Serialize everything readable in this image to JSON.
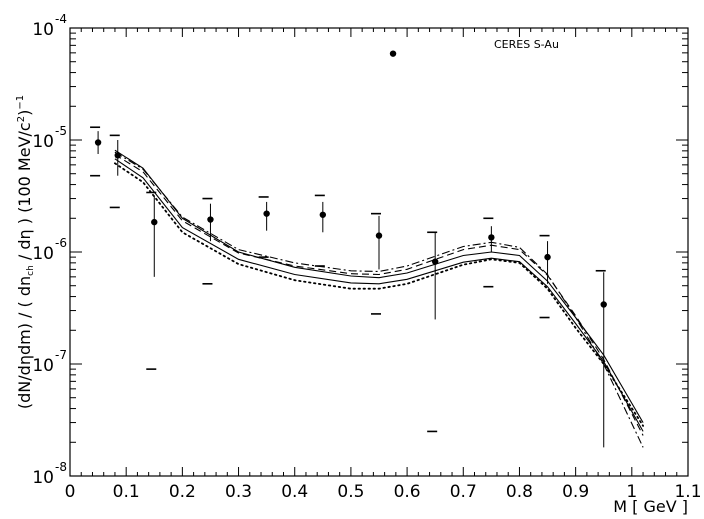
{
  "chart_data": {
    "type": "scatter",
    "title": "",
    "annotation": "CERES S-Au",
    "xlabel": "M [ GeV ]",
    "ylabel": "(dN/dηdm) / ( dn_ch / dη ) (100 MeV/c²)⁻¹",
    "ylabel_parts": {
      "prefix": "(dN/d",
      "eta1": "η",
      "mid": "dm) / ( dn",
      "sub": "ch",
      "mid2": " / d",
      "eta2": "η",
      "suffix": " ) (100 MeV/c",
      "sup2": "2",
      "close": ")",
      "supm1": "−1"
    },
    "x_scale": "linear",
    "y_scale": "log",
    "xlim": [
      0,
      1.1
    ],
    "ylim": [
      1e-08,
      0.0001
    ],
    "x_ticks": [
      "0",
      "0.1",
      "0.2",
      "0.3",
      "0.4",
      "0.5",
      "0.6",
      "0.7",
      "0.8",
      "0.9",
      "1",
      "1.1"
    ],
    "y_ticks": [
      {
        "base": "10",
        "exp": "-8"
      },
      {
        "base": "10",
        "exp": "-7"
      },
      {
        "base": "10",
        "exp": "-6"
      },
      {
        "base": "10",
        "exp": "-5"
      },
      {
        "base": "10",
        "exp": "-4"
      }
    ],
    "grid": false,
    "points": [
      {
        "x": 0.05,
        "y": 9.5e-06,
        "err_lo": 7.5e-06,
        "err_hi": 1.2e-05,
        "sys_lo": 4.8e-06,
        "sys_hi": 1.3e-05
      },
      {
        "x": 0.085,
        "y": 7.3e-06,
        "err_lo": 4.8e-06,
        "err_hi": 1e-05,
        "sys_lo": 2.5e-06,
        "sys_hi": 1.1e-05
      },
      {
        "x": 0.15,
        "y": 1.85e-06,
        "err_lo": 6e-07,
        "err_hi": 3.2e-06,
        "sys_lo": 9e-08,
        "sys_hi": 3.4e-06
      },
      {
        "x": 0.25,
        "y": 1.95e-06,
        "err_lo": 1.25e-06,
        "err_hi": 2.7e-06,
        "sys_lo": 5.2e-07,
        "sys_hi": 3e-06
      },
      {
        "x": 0.35,
        "y": 2.2e-06,
        "err_lo": 1.55e-06,
        "err_hi": 2.8e-06,
        "sys_lo": 9e-07,
        "sys_hi": 3.1e-06
      },
      {
        "x": 0.45,
        "y": 2.15e-06,
        "err_lo": 1.5e-06,
        "err_hi": 2.8e-06,
        "sys_lo": 7.5e-07,
        "sys_hi": 3.2e-06
      },
      {
        "x": 0.55,
        "y": 1.4e-06,
        "err_lo": 7e-07,
        "err_hi": 2.1e-06,
        "sys_lo": 2.8e-07,
        "sys_hi": 2.2e-06
      },
      {
        "x": 0.575,
        "y": 5.9e-05
      },
      {
        "x": 0.65,
        "y": 8.2e-07,
        "err_lo": 2.5e-07,
        "err_hi": 1.5e-06,
        "sys_lo": 2.5e-08,
        "sys_hi": 1.5e-06
      },
      {
        "x": 0.75,
        "y": 1.35e-06,
        "err_lo": 1e-06,
        "err_hi": 1.7e-06,
        "sys_lo": 4.9e-07,
        "sys_hi": 2e-06
      },
      {
        "x": 0.85,
        "y": 9e-07,
        "err_lo": 5.2e-07,
        "err_hi": 1.25e-06,
        "sys_lo": 2.6e-07,
        "sys_hi": 1.4e-06
      },
      {
        "x": 0.95,
        "y": 3.4e-07,
        "err_lo": 1.8e-08,
        "err_hi": 6.6e-07,
        "sys_lo": null,
        "sys_hi": 6.8e-07
      }
    ],
    "curves": [
      {
        "style": "solid",
        "x": [
          0.08,
          0.13,
          0.2,
          0.3,
          0.4,
          0.5,
          0.55,
          0.6,
          0.7,
          0.75,
          0.8,
          0.85,
          0.9,
          0.95,
          1.02
        ],
        "y": [
          8.1e-06,
          5.6e-06,
          2e-06,
          1e-06,
          7.3e-07,
          6.1e-07,
          5.9e-07,
          6.5e-07,
          9.3e-07,
          1e-06,
          9.3e-07,
          5.5e-07,
          2.6e-07,
          1.2e-07,
          3e-08
        ]
      },
      {
        "style": "solid",
        "x": [
          0.08,
          0.13,
          0.2,
          0.3,
          0.4,
          0.5,
          0.55,
          0.6,
          0.7,
          0.75,
          0.8,
          0.85,
          0.9,
          0.95,
          1.02
        ],
        "y": [
          6.8e-06,
          4.6e-06,
          1.65e-06,
          8.6e-07,
          6.3e-07,
          5.3e-07,
          5.2e-07,
          5.7e-07,
          8.1e-07,
          8.8e-07,
          8.2e-07,
          4.9e-07,
          2.3e-07,
          1.05e-07,
          2.5e-08
        ]
      },
      {
        "style": "dashed",
        "x": [
          0.08,
          0.13,
          0.2,
          0.3,
          0.4,
          0.5,
          0.55,
          0.6,
          0.7,
          0.75,
          0.8,
          0.85,
          0.9,
          0.95,
          1.02
        ],
        "y": [
          7.4e-06,
          5.2e-06,
          1.9e-06,
          9.8e-07,
          7.5e-07,
          6.4e-07,
          6.3e-07,
          7e-07,
          1.05e-06,
          1.15e-06,
          1.05e-06,
          6.2e-07,
          2.7e-07,
          1.1e-07,
          2.3e-08
        ]
      },
      {
        "style": "dashdot",
        "x": [
          0.08,
          0.13,
          0.2,
          0.3,
          0.4,
          0.5,
          0.55,
          0.6,
          0.7,
          0.75,
          0.8,
          0.85,
          0.9,
          0.95,
          1.02
        ],
        "y": [
          7.8e-06,
          5.5e-06,
          2.05e-06,
          1.05e-06,
          8e-07,
          6.8e-07,
          6.7e-07,
          7.5e-07,
          1.12e-06,
          1.22e-06,
          1.1e-06,
          6.3e-07,
          2.6e-07,
          1e-07,
          1.8e-08
        ]
      },
      {
        "style": "dotted",
        "x": [
          0.08,
          0.13,
          0.2,
          0.3,
          0.4,
          0.5,
          0.55,
          0.6,
          0.7,
          0.75,
          0.8,
          0.85,
          0.9,
          0.95,
          1.02
        ],
        "y": [
          6.2e-06,
          4.2e-06,
          1.5e-06,
          7.8e-07,
          5.6e-07,
          4.7e-07,
          4.7e-07,
          5.2e-07,
          7.7e-07,
          8.6e-07,
          8e-07,
          4.7e-07,
          2.1e-07,
          1e-07,
          2.8e-08
        ]
      }
    ]
  }
}
